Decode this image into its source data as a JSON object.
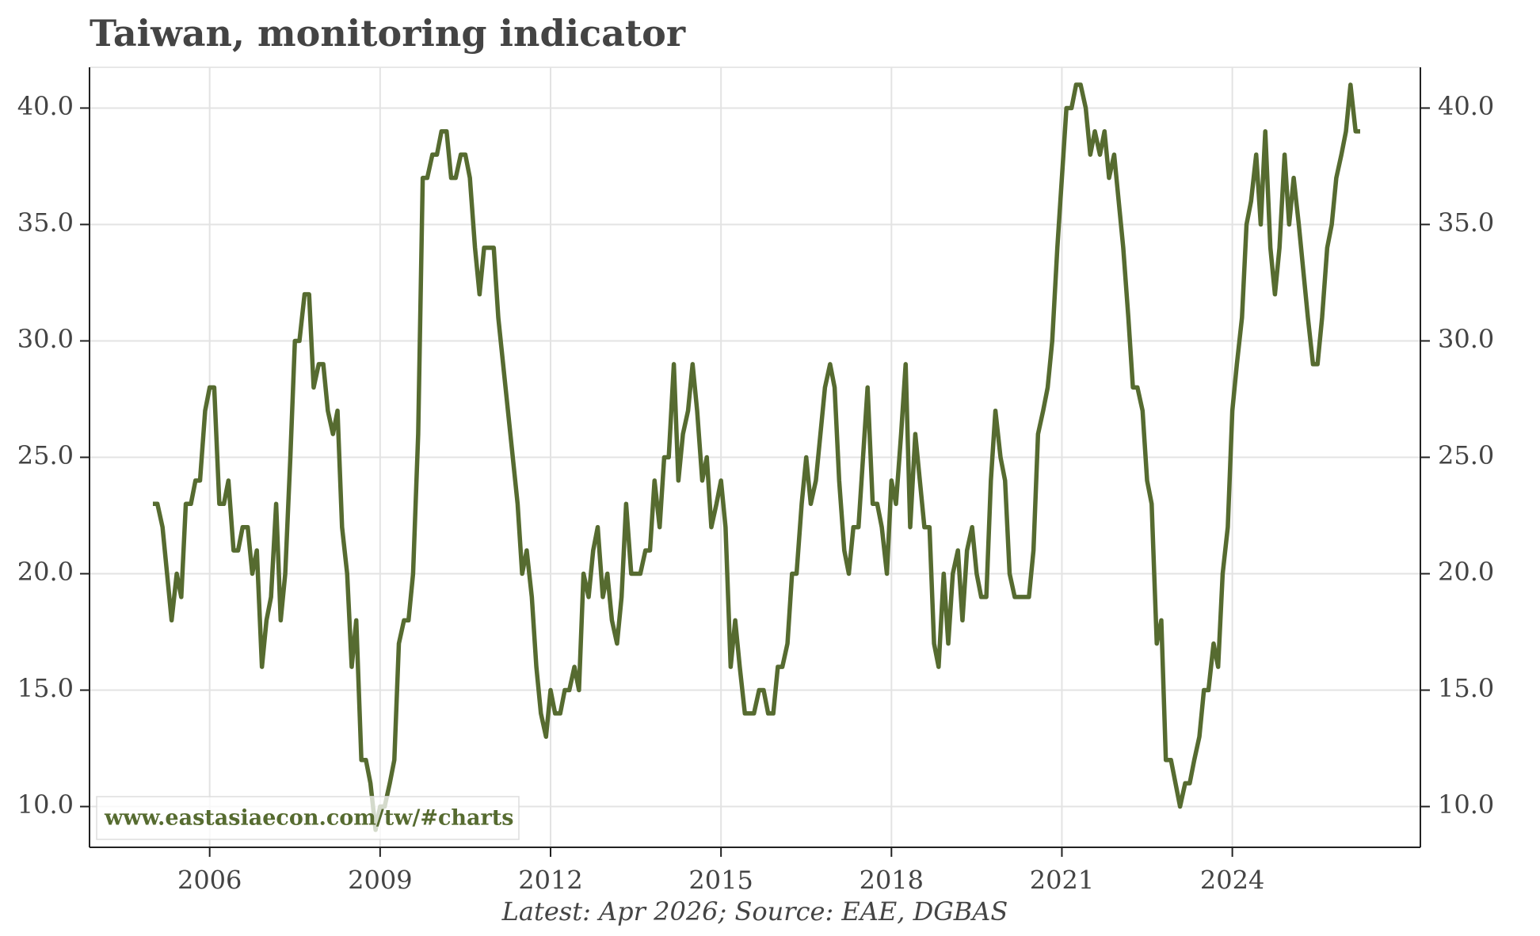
{
  "chart_data": {
    "type": "line",
    "title": "Taiwan, monitoring indicator",
    "source": "Latest: Apr 2026; Source: EAE, DGBAS",
    "watermark": "www.eastasiaecon.com/tw/#charts",
    "color": "#566b30",
    "grid": true,
    "xlim": [
      2003.885,
      2027.31
    ],
    "ylim": [
      8.25,
      41.75
    ],
    "xticks": [
      2006,
      2009,
      2012,
      2015,
      2018,
      2021,
      2024
    ],
    "yticks": [
      {
        "value": 10,
        "label": "10.0"
      },
      {
        "value": 15,
        "label": "15.0"
      },
      {
        "value": 20,
        "label": "20.0"
      },
      {
        "value": 25,
        "label": "25.0"
      },
      {
        "value": 30,
        "label": "30.0"
      },
      {
        "value": 35,
        "label": "35.0"
      },
      {
        "value": 40,
        "label": "40.0"
      }
    ],
    "x": [
      2005.0,
      2005.08,
      2005.17,
      2005.25,
      2005.33,
      2005.42,
      2005.5,
      2005.58,
      2005.67,
      2005.75,
      2005.83,
      2005.92,
      2006.0,
      2006.08,
      2006.17,
      2006.25,
      2006.33,
      2006.42,
      2006.5,
      2006.58,
      2006.67,
      2006.75,
      2006.83,
      2006.92,
      2007.0,
      2007.08,
      2007.17,
      2007.25,
      2007.33,
      2007.42,
      2007.5,
      2007.58,
      2007.67,
      2007.75,
      2007.83,
      2007.92,
      2008.0,
      2008.08,
      2008.17,
      2008.25,
      2008.33,
      2008.42,
      2008.5,
      2008.58,
      2008.67,
      2008.75,
      2008.83,
      2008.92,
      2009.0,
      2009.08,
      2009.17,
      2009.25,
      2009.33,
      2009.42,
      2009.5,
      2009.58,
      2009.67,
      2009.75,
      2009.83,
      2009.92,
      2010.0,
      2010.08,
      2010.17,
      2010.25,
      2010.33,
      2010.42,
      2010.5,
      2010.58,
      2010.67,
      2010.75,
      2010.83,
      2010.92,
      2011.0,
      2011.08,
      2011.25,
      2011.42,
      2011.5,
      2011.58,
      2011.67,
      2011.75,
      2011.83,
      2011.92,
      2012.0,
      2012.08,
      2012.17,
      2012.25,
      2012.33,
      2012.42,
      2012.5,
      2012.58,
      2012.67,
      2012.75,
      2012.83,
      2012.92,
      2013.0,
      2013.08,
      2013.17,
      2013.25,
      2013.33,
      2013.42,
      2013.5,
      2013.58,
      2013.67,
      2013.75,
      2013.83,
      2013.92,
      2014.0,
      2014.08,
      2014.17,
      2014.25,
      2014.33,
      2014.42,
      2014.5,
      2014.58,
      2014.67,
      2014.75,
      2014.83,
      2014.92,
      2015.0,
      2015.08,
      2015.17,
      2015.25,
      2015.33,
      2015.42,
      2015.5,
      2015.58,
      2015.67,
      2015.75,
      2015.83,
      2015.92,
      2016.0,
      2016.08,
      2016.17,
      2016.25,
      2016.33,
      2016.42,
      2016.5,
      2016.58,
      2016.67,
      2016.75,
      2016.83,
      2016.92,
      2017.0,
      2017.08,
      2017.17,
      2017.25,
      2017.33,
      2017.42,
      2017.5,
      2017.58,
      2017.67,
      2017.75,
      2017.83,
      2017.92,
      2018.0,
      2018.08,
      2018.17,
      2018.25,
      2018.33,
      2018.42,
      2018.5,
      2018.58,
      2018.67,
      2018.75,
      2018.83,
      2018.92,
      2019.0,
      2019.08,
      2019.17,
      2019.25,
      2019.33,
      2019.42,
      2019.5,
      2019.58,
      2019.67,
      2019.75,
      2019.83,
      2019.92,
      2020.0,
      2020.08,
      2020.17,
      2020.25,
      2020.33,
      2020.42,
      2020.5,
      2020.58,
      2020.67,
      2020.75,
      2020.83,
      2020.92,
      2021.0,
      2021.08,
      2021.17,
      2021.25,
      2021.33,
      2021.42,
      2021.5,
      2021.58,
      2021.67,
      2021.75,
      2021.83,
      2021.92,
      2022.0,
      2022.08,
      2022.17,
      2022.25,
      2022.33,
      2022.42,
      2022.5,
      2022.58,
      2022.67,
      2022.75,
      2022.83,
      2022.92,
      2023.0,
      2023.08,
      2023.17,
      2023.25,
      2023.33,
      2023.42,
      2023.5,
      2023.58,
      2023.67,
      2023.75,
      2023.83,
      2023.92,
      2024.0,
      2024.08,
      2024.17,
      2024.25,
      2024.33,
      2024.42,
      2024.5,
      2024.58,
      2024.67,
      2024.75,
      2024.83,
      2024.92,
      2025.0,
      2025.08,
      2025.17,
      2025.25,
      2025.33,
      2025.42,
      2025.5,
      2025.58,
      2025.67,
      2025.75,
      2025.83,
      2025.92,
      2026.0,
      2026.08,
      2026.17,
      2026.25
    ],
    "values": [
      23,
      23,
      22,
      20,
      18,
      20,
      19,
      23,
      23,
      24,
      24,
      27,
      28,
      28,
      23,
      23,
      24,
      21,
      21,
      22,
      22,
      20,
      21,
      16,
      18,
      19,
      23,
      18,
      20,
      25,
      30,
      30,
      32,
      32,
      28,
      29,
      29,
      27,
      26,
      27,
      22,
      20,
      16,
      18,
      12,
      12,
      11,
      9,
      10,
      10,
      11,
      12,
      17,
      18,
      18,
      20,
      26,
      37,
      37,
      38,
      38,
      39,
      39,
      37,
      37,
      38,
      38,
      37,
      34,
      32,
      34,
      34,
      34,
      31,
      27,
      23,
      20,
      21,
      19,
      16,
      14,
      13,
      15,
      14,
      14,
      15,
      15,
      16,
      15,
      20,
      19,
      21,
      22,
      19,
      20,
      18,
      17,
      19,
      23,
      20,
      20,
      20,
      21,
      21,
      24,
      22,
      25,
      25,
      29,
      24,
      26,
      27,
      29,
      27,
      24,
      25,
      22,
      23,
      24,
      22,
      16,
      18,
      16,
      14,
      14,
      14,
      15,
      15,
      14,
      14,
      16,
      16,
      17,
      20,
      20,
      23,
      25,
      23,
      24,
      26,
      28,
      29,
      28,
      24,
      21,
      20,
      22,
      22,
      25,
      28,
      23,
      23,
      22,
      20,
      24,
      23,
      26,
      29,
      22,
      26,
      24,
      22,
      22,
      17,
      16,
      20,
      17,
      20,
      21,
      18,
      21,
      22,
      20,
      19,
      19,
      24,
      27,
      25,
      24,
      20,
      19,
      19,
      19,
      19,
      21,
      26,
      27,
      28,
      30,
      34,
      37,
      40,
      40,
      41,
      41,
      40,
      38,
      39,
      38,
      39,
      37,
      38,
      36,
      34,
      31,
      28,
      28,
      27,
      24,
      23,
      17,
      18,
      12,
      12,
      11,
      10,
      11,
      11,
      12,
      13,
      15,
      15,
      17,
      16,
      20,
      22,
      27,
      29,
      31,
      35,
      36,
      38,
      35,
      39,
      34,
      32,
      34,
      38,
      35,
      37,
      35,
      33,
      31,
      29,
      29,
      31,
      34,
      35,
      37,
      38,
      39,
      41,
      39,
      39
    ]
  }
}
